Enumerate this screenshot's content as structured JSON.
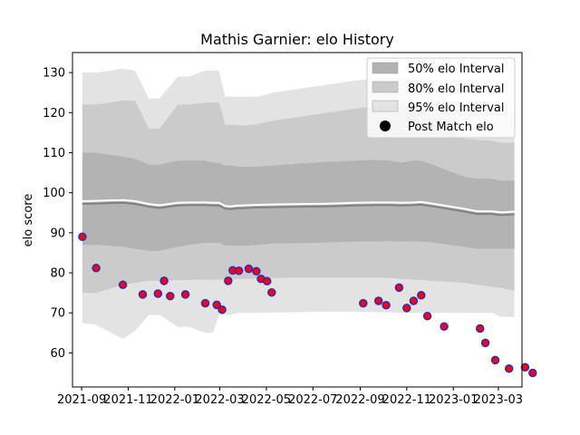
{
  "chart_data": {
    "type": "line",
    "title": "Mathis Garnier: elo History",
    "xlabel": "",
    "ylabel": "elo score",
    "xlim": [
      "2021-08-20",
      "2023-04-01"
    ],
    "ylim": [
      51.5,
      135
    ],
    "x_ticks": [
      "2021-09",
      "2021-11",
      "2022-01",
      "2022-03",
      "2022-05",
      "2022-07",
      "2022-09",
      "2022-11",
      "2023-01",
      "2023-03"
    ],
    "y_ticks": [
      60,
      70,
      80,
      90,
      100,
      110,
      120,
      130
    ],
    "grid": false,
    "legend_position": "top-right",
    "legend": {
      "band50": "50% elo Interval",
      "band80": "80% elo Interval",
      "band95": "95% elo Interval",
      "points": "Post Match elo"
    },
    "colors": {
      "band50": "#b3b3b3",
      "band80": "#cbcbcb",
      "band95": "#e3e3e3",
      "mean_line": "#808080",
      "mean_highlight": "#ffffff",
      "point_fill": "#ff0000",
      "point_edge": "#2b2bbf"
    },
    "bands": {
      "dates": [
        "2021-09-02",
        "2021-09-20",
        "2021-10-25",
        "2021-11-10",
        "2021-11-28",
        "2021-12-12",
        "2022-01-05",
        "2022-01-20",
        "2022-02-10",
        "2022-02-20",
        "2022-02-28",
        "2022-03-08",
        "2022-03-15",
        "2022-03-25",
        "2022-04-05",
        "2022-04-20",
        "2022-05-10",
        "2022-06-15",
        "2022-07-20",
        "2022-08-25",
        "2022-09-20",
        "2022-10-10",
        "2022-10-25",
        "2022-11-10",
        "2022-11-20",
        "2022-12-05",
        "2023-01-15",
        "2023-02-01",
        "2023-02-20",
        "2023-03-05",
        "2023-03-22"
      ],
      "mean": [
        97.2,
        97.3,
        97.5,
        97.2,
        96.5,
        96.2,
        96.8,
        96.9,
        96.9,
        96.8,
        96.8,
        96.0,
        95.9,
        96.1,
        96.2,
        96.3,
        96.4,
        96.5,
        96.6,
        96.8,
        96.9,
        96.9,
        96.8,
        96.9,
        97.0,
        96.6,
        95.3,
        94.7,
        94.7,
        94.4,
        94.6
      ],
      "lo50": [
        87.0,
        87.0,
        86.5,
        86.0,
        85.5,
        85.5,
        86.5,
        87.0,
        87.5,
        87.5,
        87.5,
        86.8,
        86.8,
        86.8,
        86.8,
        87.0,
        87.3,
        87.4,
        87.6,
        87.8,
        87.8,
        87.9,
        87.8,
        87.9,
        87.8,
        87.6,
        86.5,
        86.0,
        86.0,
        86.0,
        86.0
      ],
      "hi50": [
        110.0,
        110.0,
        109.0,
        108.5,
        107.0,
        107.0,
        108.0,
        108.0,
        108.0,
        107.5,
        107.5,
        106.8,
        106.8,
        106.5,
        106.5,
        106.5,
        106.8,
        107.3,
        107.7,
        108.0,
        108.2,
        108.0,
        107.5,
        108.0,
        108.0,
        107.0,
        104.0,
        103.5,
        103.5,
        103.0,
        103.0
      ],
      "lo80": [
        75.0,
        75.0,
        77.0,
        77.5,
        78.0,
        78.0,
        78.2,
        78.2,
        78.3,
        78.3,
        78.3,
        78.4,
        78.4,
        78.5,
        78.5,
        78.6,
        78.7,
        78.8,
        78.8,
        78.8,
        78.8,
        78.7,
        78.5,
        78.3,
        78.2,
        78.0,
        77.5,
        77.0,
        76.5,
        76.2,
        75.5
      ],
      "hi80": [
        122.0,
        122.0,
        123.0,
        123.0,
        116.0,
        116.0,
        122.0,
        122.0,
        122.5,
        122.5,
        122.5,
        117.0,
        117.0,
        116.8,
        116.8,
        117.2,
        118.0,
        119.0,
        120.0,
        121.0,
        121.5,
        121.5,
        121.5,
        121.5,
        121.0,
        119.0,
        113.5,
        113.2,
        113.0,
        112.5,
        112.5
      ],
      "lo95": [
        67.5,
        67.0,
        63.5,
        65.5,
        69.5,
        69.5,
        66.5,
        66.5,
        65.0,
        65.0,
        69.5,
        69.5,
        69.5,
        70.0,
        70.0,
        70.0,
        70.1,
        70.2,
        70.3,
        70.3,
        70.2,
        70.1,
        70.0,
        70.0,
        70.0,
        70.0,
        70.0,
        70.0,
        70.0,
        69.0,
        69.0
      ],
      "hi95": [
        130.0,
        130.0,
        131.0,
        130.5,
        123.5,
        123.5,
        129.0,
        129.0,
        130.5,
        130.5,
        130.5,
        124.0,
        124.0,
        124.0,
        124.0,
        124.0,
        125.0,
        126.0,
        127.0,
        128.0,
        128.5,
        128.5,
        128.5,
        128.5,
        128.0,
        126.0,
        120.0,
        120.0,
        120.0,
        120.0,
        120.0
      ]
    },
    "points": [
      {
        "x": "2021-09-02",
        "y": 89.0
      },
      {
        "x": "2021-09-20",
        "y": 81.2
      },
      {
        "x": "2021-10-25",
        "y": 77.0
      },
      {
        "x": "2021-11-20",
        "y": 74.6
      },
      {
        "x": "2021-12-10",
        "y": 74.8
      },
      {
        "x": "2021-12-18",
        "y": 78.0
      },
      {
        "x": "2021-12-26",
        "y": 74.2
      },
      {
        "x": "2022-01-15",
        "y": 74.6
      },
      {
        "x": "2022-02-10",
        "y": 72.4
      },
      {
        "x": "2022-02-25",
        "y": 72.0
      },
      {
        "x": "2022-03-04",
        "y": 70.8
      },
      {
        "x": "2022-03-12",
        "y": 78.0
      },
      {
        "x": "2022-03-18",
        "y": 80.6
      },
      {
        "x": "2022-03-26",
        "y": 80.5
      },
      {
        "x": "2022-04-08",
        "y": 81.0
      },
      {
        "x": "2022-04-18",
        "y": 80.4
      },
      {
        "x": "2022-04-24",
        "y": 78.5
      },
      {
        "x": "2022-05-02",
        "y": 77.9
      },
      {
        "x": "2022-05-08",
        "y": 75.1
      },
      {
        "x": "2022-09-05",
        "y": 72.4
      },
      {
        "x": "2022-09-25",
        "y": 73.0
      },
      {
        "x": "2022-10-05",
        "y": 71.9
      },
      {
        "x": "2022-10-22",
        "y": 76.3
      },
      {
        "x": "2022-11-01",
        "y": 71.2
      },
      {
        "x": "2022-11-10",
        "y": 73.0
      },
      {
        "x": "2022-11-20",
        "y": 74.4
      },
      {
        "x": "2022-11-28",
        "y": 69.2
      },
      {
        "x": "2022-12-20",
        "y": 66.6
      },
      {
        "x": "2023-02-05",
        "y": 66.1
      },
      {
        "x": "2023-02-12",
        "y": 62.5
      },
      {
        "x": "2023-02-25",
        "y": 58.2
      },
      {
        "x": "2023-03-15",
        "y": 56.1
      },
      {
        "x": "2023-04-05",
        "y": 56.4
      },
      {
        "x": "2023-04-15",
        "y": 55.0
      }
    ]
  }
}
